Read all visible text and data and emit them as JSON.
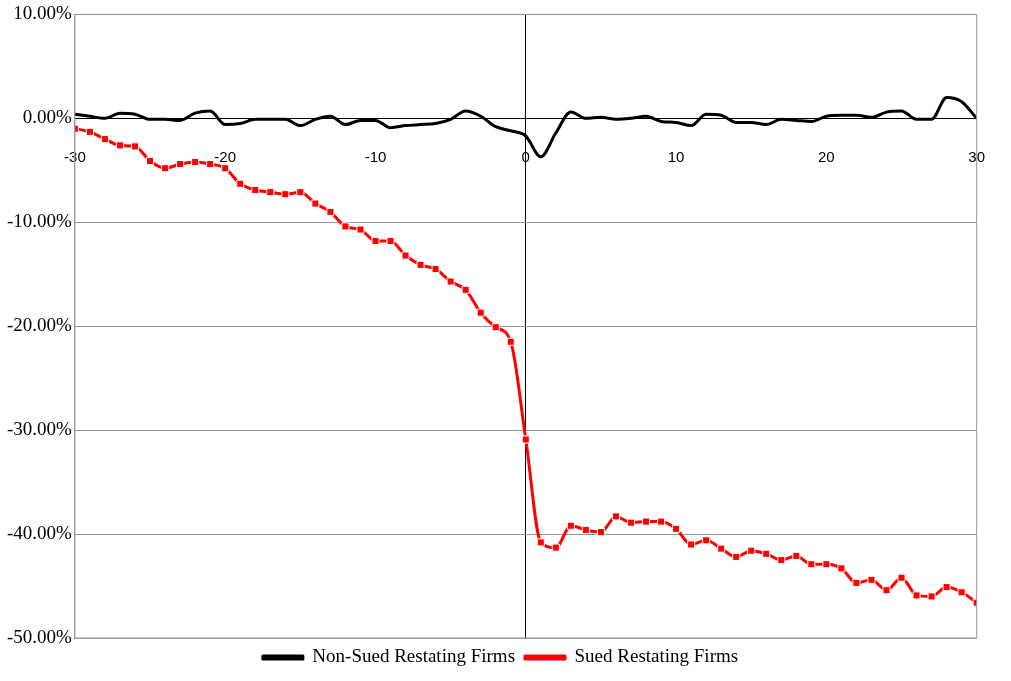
{
  "chart_data": {
    "type": "line",
    "x": [
      -30,
      -29,
      -28,
      -27,
      -26,
      -25,
      -24,
      -23,
      -22,
      -21,
      -20,
      -19,
      -18,
      -17,
      -16,
      -15,
      -14,
      -13,
      -12,
      -11,
      -10,
      -9,
      -8,
      -7,
      -6,
      -5,
      -4,
      -3,
      -2,
      -1,
      0,
      1,
      2,
      3,
      4,
      5,
      6,
      7,
      8,
      9,
      10,
      11,
      12,
      13,
      14,
      15,
      16,
      17,
      18,
      19,
      20,
      21,
      22,
      23,
      24,
      25,
      26,
      27,
      28,
      29,
      30
    ],
    "series": [
      {
        "name": "Non-Sued Restating Firms",
        "color": "#000000",
        "marker": "none",
        "values": [
          0.4,
          0.2,
          0.0,
          0.5,
          0.4,
          -0.1,
          -0.1,
          -0.2,
          0.5,
          0.7,
          -0.6,
          -0.5,
          -0.1,
          -0.1,
          -0.1,
          -0.7,
          -0.1,
          0.2,
          -0.6,
          -0.2,
          -0.2,
          -0.9,
          -0.7,
          -0.6,
          -0.5,
          -0.1,
          0.7,
          0.2,
          -0.8,
          -1.2,
          -1.7,
          -3.7,
          -1.4,
          0.6,
          0.0,
          0.1,
          -0.1,
          0.0,
          0.2,
          -0.3,
          -0.4,
          -0.7,
          0.4,
          0.3,
          -0.4,
          -0.4,
          -0.6,
          -0.1,
          -0.2,
          -0.3,
          0.2,
          0.3,
          0.3,
          0.1,
          0.6,
          0.7,
          -0.1,
          -0.1,
          2.0,
          1.6,
          0.0
        ]
      },
      {
        "name": "Sued Restating Firms",
        "color": "#ff0000",
        "marker": "square",
        "values": [
          -1.0,
          -1.3,
          -2.0,
          -2.6,
          -2.7,
          -4.1,
          -4.8,
          -4.4,
          -4.2,
          -4.4,
          -4.8,
          -6.3,
          -6.9,
          -7.1,
          -7.3,
          -7.1,
          -8.2,
          -9.0,
          -10.4,
          -10.7,
          -11.8,
          -11.8,
          -13.2,
          -14.1,
          -14.5,
          -15.7,
          -16.5,
          -18.7,
          -20.1,
          -21.5,
          -30.9,
          -40.8,
          -41.3,
          -39.2,
          -39.6,
          -39.8,
          -38.3,
          -38.9,
          -38.8,
          -38.8,
          -39.5,
          -41.0,
          -40.6,
          -41.4,
          -42.2,
          -41.6,
          -41.9,
          -42.5,
          -42.1,
          -42.9,
          -42.9,
          -43.3,
          -44.7,
          -44.4,
          -45.4,
          -44.2,
          -45.9,
          -46.0,
          -45.1,
          -45.6,
          -46.6
        ]
      }
    ],
    "xlim": [
      -30,
      30
    ],
    "xticks": [
      -30,
      -20,
      -10,
      0,
      10,
      20,
      30
    ],
    "ylim": [
      -50,
      10
    ],
    "yticks": [
      {
        "value": 10,
        "label": "10.00%"
      },
      {
        "value": 0,
        "label": "0.00%"
      },
      {
        "value": -10,
        "label": "-10.00%"
      },
      {
        "value": -20,
        "label": "-20.00%"
      },
      {
        "value": -30,
        "label": "-30.00%"
      },
      {
        "value": -40,
        "label": "-40.00%"
      },
      {
        "value": -50,
        "label": "-50.00%"
      }
    ],
    "grid": "y",
    "legend": "bottom"
  }
}
